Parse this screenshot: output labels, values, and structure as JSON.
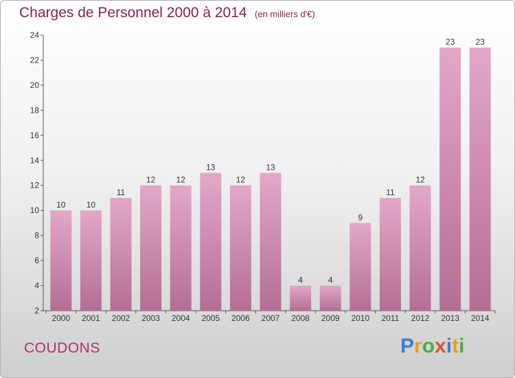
{
  "title": "Charges de Personnel 2000 à 2014",
  "subtitle": "(en milliers d'€)",
  "place": "COUDONS",
  "logo": {
    "letters": [
      "P",
      "r",
      "o",
      "x",
      "i",
      "t",
      "i"
    ],
    "colors": [
      "#3a7fd5",
      "#e8a020",
      "#4caf3f",
      "#e05030",
      "#3a7fd5",
      "#e8a020",
      "#4caf3f"
    ]
  },
  "colors": {
    "bar_top": "#e3a8c9",
    "bar_bottom": "#b46e94",
    "accent": "#8a1f52"
  },
  "chart_data": {
    "type": "bar",
    "title": "Charges de Personnel 2000 à 2014",
    "categories": [
      "2000",
      "2001",
      "2002",
      "2003",
      "2004",
      "2005",
      "2006",
      "2007",
      "2008",
      "2009",
      "2010",
      "2011",
      "2012",
      "2013",
      "2014"
    ],
    "values": [
      10,
      10,
      11,
      12,
      12,
      13,
      12,
      13,
      4,
      4,
      9,
      11,
      12,
      23,
      23
    ],
    "ylim": [
      2,
      24
    ],
    "yticks": [
      2,
      4,
      6,
      8,
      10,
      12,
      14,
      16,
      18,
      20,
      22,
      24
    ],
    "data_labels": true,
    "grid": false
  }
}
